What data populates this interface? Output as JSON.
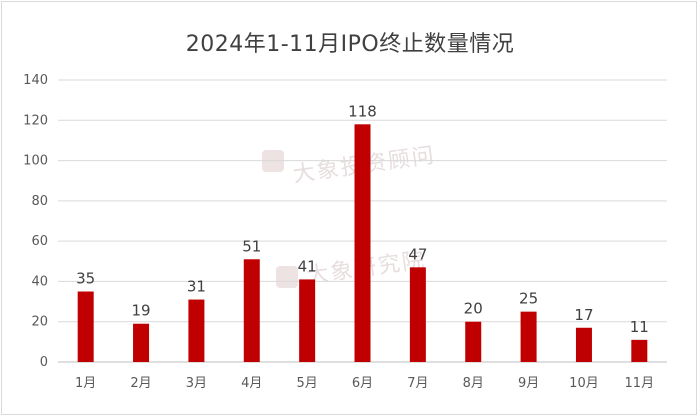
{
  "chart_data": {
    "type": "bar",
    "title": "2024年1-11月IPO终止数量情况",
    "categories": [
      "1月",
      "2月",
      "3月",
      "4月",
      "5月",
      "6月",
      "7月",
      "8月",
      "9月",
      "10月",
      "11月"
    ],
    "values": [
      35,
      19,
      31,
      51,
      41,
      118,
      47,
      20,
      25,
      17,
      11
    ],
    "ylim": [
      0,
      140
    ],
    "yticks": [
      0,
      20,
      40,
      60,
      80,
      100,
      120,
      140
    ],
    "xlabel": "",
    "ylabel": "",
    "bar_color": "#c00000",
    "grid": true,
    "data_labels": true,
    "legend": "none"
  },
  "watermarks": [
    "大象投资顾问",
    "大象研究院"
  ]
}
